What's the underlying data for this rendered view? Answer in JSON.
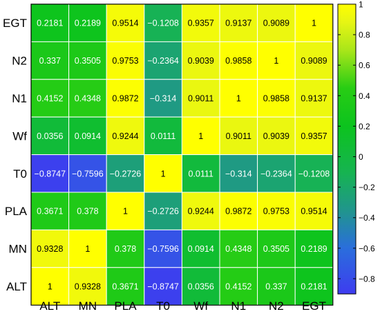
{
  "chart_data": {
    "type": "heatmap",
    "title": "",
    "xlabel": "",
    "ylabel": "",
    "x_labels": [
      "ALT",
      "MN",
      "PLA",
      "T0",
      "Wf",
      "N1",
      "N2",
      "EGT"
    ],
    "y_labels_top_to_bottom": [
      "EGT",
      "N2",
      "N1",
      "Wf",
      "T0",
      "PLA",
      "MN",
      "ALT"
    ],
    "cell_labels": [
      [
        "0.2181",
        "0.2189",
        "0.9514",
        "−0.1208",
        "0.9357",
        "0.9137",
        "0.9089",
        "1"
      ],
      [
        "0.337",
        "0.3505",
        "0.9753",
        "−0.2364",
        "0.9039",
        "0.9858",
        "1",
        "0.9089"
      ],
      [
        "0.4152",
        "0.4348",
        "0.9872",
        "−0.314",
        "0.9011",
        "1",
        "0.9858",
        "0.9137"
      ],
      [
        "0.0356",
        "0.0914",
        "0.9244",
        "0.0111",
        "1",
        "0.9011",
        "0.9039",
        "0.9357"
      ],
      [
        "−0.8747",
        "−0.7596",
        "−0.2726",
        "1",
        "0.0111",
        "−0.314",
        "−0.2364",
        "−0.1208"
      ],
      [
        "0.3671",
        "0.378",
        "1",
        "−0.2726",
        "0.9244",
        "0.9872",
        "0.9753",
        "0.9514"
      ],
      [
        "0.9328",
        "1",
        "0.378",
        "−0.7596",
        "0.0914",
        "0.4348",
        "0.3505",
        "0.2189"
      ],
      [
        "1",
        "0.9328",
        "0.3671",
        "−0.8747",
        "0.0356",
        "0.4152",
        "0.337",
        "0.2181"
      ]
    ],
    "values": [
      [
        0.2181,
        0.2189,
        0.9514,
        -0.1208,
        0.9357,
        0.9137,
        0.9089,
        1
      ],
      [
        0.337,
        0.3505,
        0.9753,
        -0.2364,
        0.9039,
        0.9858,
        1,
        0.9089
      ],
      [
        0.4152,
        0.4348,
        0.9872,
        -0.314,
        0.9011,
        1,
        0.9858,
        0.9137
      ],
      [
        0.0356,
        0.0914,
        0.9244,
        0.0111,
        1,
        0.9011,
        0.9039,
        0.9357
      ],
      [
        -0.8747,
        -0.7596,
        -0.2726,
        1,
        0.0111,
        -0.314,
        -0.2364,
        -0.1208
      ],
      [
        0.3671,
        0.378,
        1,
        -0.2726,
        0.9244,
        0.9872,
        0.9753,
        0.9514
      ],
      [
        0.9328,
        1,
        0.378,
        -0.7596,
        0.0914,
        0.4348,
        0.3505,
        0.2189
      ],
      [
        1,
        0.9328,
        0.3671,
        -0.8747,
        0.0356,
        0.4152,
        0.337,
        0.2181
      ]
    ],
    "colorbar": {
      "range": [
        -0.9,
        1
      ],
      "ticks": [
        1,
        0.8,
        0.6,
        0.4,
        0.2,
        0,
        -0.2,
        -0.4,
        -0.6,
        -0.8
      ],
      "tick_labels": [
        "1",
        "0.8",
        "0.6",
        "0.4",
        "0.2",
        "0",
        "−0.2",
        "−0.4",
        "−0.6",
        "−0.8"
      ],
      "colormap": "parula-like (blue → green → yellow)",
      "position": "right"
    },
    "grid": true
  }
}
